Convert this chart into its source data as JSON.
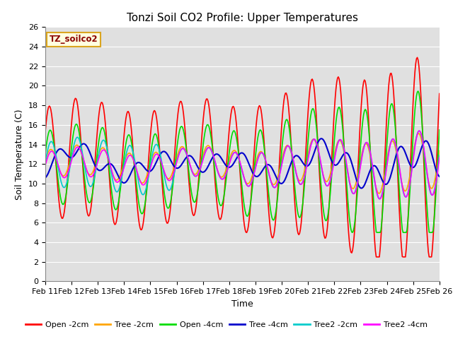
{
  "title": "Tonzi Soil CO2 Profile: Upper Temperatures",
  "xlabel": "Time",
  "ylabel": "Soil Temperature (C)",
  "annotation": "TZ_soilco2",
  "xlim": [
    0,
    15
  ],
  "ylim": [
    0,
    26
  ],
  "yticks": [
    0,
    2,
    4,
    6,
    8,
    10,
    12,
    14,
    16,
    18,
    20,
    22,
    24,
    26
  ],
  "xtick_labels": [
    "Feb 11",
    "Feb 12",
    "Feb 13",
    "Feb 14",
    "Feb 15",
    "Feb 16",
    "Feb 17",
    "Feb 18",
    "Feb 19",
    "Feb 20",
    "Feb 21",
    "Feb 22",
    "Feb 23",
    "Feb 24",
    "Feb 25",
    "Feb 26"
  ],
  "series_names": [
    "Open -2cm",
    "Tree -2cm",
    "Open -4cm",
    "Tree -4cm",
    "Tree2 -2cm",
    "Tree2 -4cm"
  ],
  "series_colors": [
    "#FF0000",
    "#FFA500",
    "#00DD00",
    "#0000CC",
    "#00CCCC",
    "#FF00FF"
  ],
  "series_lw": [
    1.2,
    1.2,
    1.2,
    1.5,
    1.2,
    1.2
  ],
  "background_color": "#E0E0E0",
  "grid_color": "#FFFFFF",
  "title_fontsize": 11,
  "axis_label_fontsize": 9,
  "tick_fontsize": 8
}
